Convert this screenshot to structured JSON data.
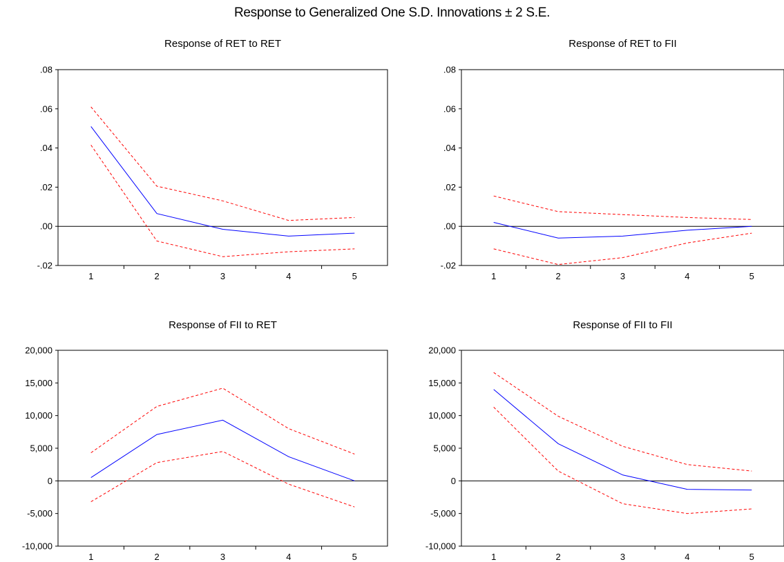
{
  "figure": {
    "title": "Response to Generalized One S.D. Innovations ± 2 S.E."
  },
  "colors": {
    "response": "#0000ff",
    "bands": "#ff0000",
    "axis": "#000000",
    "zero_line": "#000000"
  },
  "chart_data": [
    {
      "type": "line",
      "title": "Response of RET to RET",
      "x": [
        1,
        2,
        3,
        4,
        5
      ],
      "xticks": [
        "1",
        "2",
        "3",
        "4",
        "5"
      ],
      "ylim": [
        -0.02,
        0.08
      ],
      "yticks": [
        -0.02,
        0.0,
        0.02,
        0.04,
        0.06,
        0.08
      ],
      "yticklabels": [
        "-.02",
        ".00",
        ".02",
        ".04",
        ".06",
        ".08"
      ],
      "series": [
        {
          "role": "response",
          "style": "solid",
          "values": [
            0.051,
            0.0065,
            -0.0015,
            -0.005,
            -0.0035
          ]
        },
        {
          "role": "upper",
          "style": "dashed",
          "values": [
            0.061,
            0.0205,
            0.013,
            0.003,
            0.0045
          ]
        },
        {
          "role": "lower",
          "style": "dashed",
          "values": [
            0.0415,
            -0.0075,
            -0.0155,
            -0.013,
            -0.0115
          ]
        }
      ]
    },
    {
      "type": "line",
      "title": "Response of RET to FII",
      "x": [
        1,
        2,
        3,
        4,
        5
      ],
      "xticks": [
        "1",
        "2",
        "3",
        "4",
        "5"
      ],
      "ylim": [
        -0.02,
        0.08
      ],
      "yticks": [
        -0.02,
        0.0,
        0.02,
        0.04,
        0.06,
        0.08
      ],
      "yticklabels": [
        "-.02",
        ".00",
        ".02",
        ".04",
        ".06",
        ".08"
      ],
      "series": [
        {
          "role": "response",
          "style": "solid",
          "values": [
            0.002,
            -0.006,
            -0.005,
            -0.002,
            0.0
          ]
        },
        {
          "role": "upper",
          "style": "dashed",
          "values": [
            0.0155,
            0.0075,
            0.006,
            0.0045,
            0.0035
          ]
        },
        {
          "role": "lower",
          "style": "dashed",
          "values": [
            -0.0115,
            -0.0195,
            -0.016,
            -0.0085,
            -0.0035
          ]
        }
      ]
    },
    {
      "type": "line",
      "title": "Response of FII to RET",
      "x": [
        1,
        2,
        3,
        4,
        5
      ],
      "xticks": [
        "1",
        "2",
        "3",
        "4",
        "5"
      ],
      "ylim": [
        -10000,
        20000
      ],
      "yticks": [
        -10000,
        -5000,
        0,
        5000,
        10000,
        15000,
        20000
      ],
      "yticklabels": [
        "-10,000",
        "-5,000",
        "0",
        "5,000",
        "10,000",
        "15,000",
        "20,000"
      ],
      "series": [
        {
          "role": "response",
          "style": "solid",
          "values": [
            500,
            7100,
            9300,
            3700,
            0
          ]
        },
        {
          "role": "upper",
          "style": "dashed",
          "values": [
            4300,
            11400,
            14200,
            8000,
            4100
          ]
        },
        {
          "role": "lower",
          "style": "dashed",
          "values": [
            -3200,
            2800,
            4500,
            -500,
            -4000
          ]
        }
      ]
    },
    {
      "type": "line",
      "title": "Response of FII to FII",
      "x": [
        1,
        2,
        3,
        4,
        5
      ],
      "xticks": [
        "1",
        "2",
        "3",
        "4",
        "5"
      ],
      "ylim": [
        -10000,
        20000
      ],
      "yticks": [
        -10000,
        -5000,
        0,
        5000,
        10000,
        15000,
        20000
      ],
      "yticklabels": [
        "-10,000",
        "-5,000",
        "0",
        "5,000",
        "10,000",
        "15,000",
        "20,000"
      ],
      "series": [
        {
          "role": "response",
          "style": "solid",
          "values": [
            14000,
            5700,
            900,
            -1300,
            -1400
          ]
        },
        {
          "role": "upper",
          "style": "dashed",
          "values": [
            16600,
            9900,
            5300,
            2500,
            1500
          ]
        },
        {
          "role": "lower",
          "style": "dashed",
          "values": [
            11300,
            1500,
            -3500,
            -5000,
            -4300
          ]
        }
      ]
    }
  ]
}
